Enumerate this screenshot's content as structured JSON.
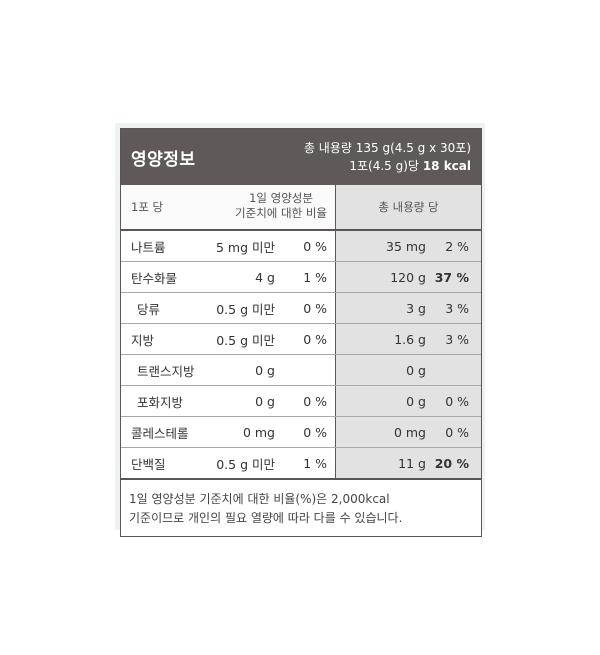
{
  "header": {
    "title": "영양정보",
    "total_line": "총 내용량 135 g(4.5 g x 30포)",
    "serving_prefix": "1포(4.5 g)당",
    "calories": "18 kcal"
  },
  "columns": {
    "per_serving": "1포 당",
    "daily_value_line1": "1일 영양성분",
    "daily_value_line2": "기준치에 대한 비율",
    "total_label": "총 내용량 당"
  },
  "rows": [
    {
      "name": "나트륨",
      "amount": "5 mg 미만",
      "dv": "0 %",
      "total_amount": "35 mg",
      "total_dv": "2 %"
    },
    {
      "name": "탄수화물",
      "amount": "4 g",
      "dv": "1 %",
      "total_amount": "120 g",
      "total_dv": "37 %"
    },
    {
      "name": "당류",
      "amount": "0.5 g 미만",
      "dv": "0 %",
      "total_amount": "3 g",
      "total_dv": "3 %"
    },
    {
      "name": "지방",
      "amount": "0.5 g 미만",
      "dv": "0 %",
      "total_amount": "1.6 g",
      "total_dv": "3 %"
    },
    {
      "name": "트랜스지방",
      "amount": "0 g",
      "dv": "",
      "total_amount": "0 g",
      "total_dv": ""
    },
    {
      "name": "포화지방",
      "amount": "0 g",
      "dv": "0 %",
      "total_amount": "0 g",
      "total_dv": "0 %"
    },
    {
      "name": "콜레스테롤",
      "amount": "0 mg",
      "dv": "0 %",
      "total_amount": "0 mg",
      "total_dv": "0 %"
    },
    {
      "name": "단백질",
      "amount": "0.5 g 미만",
      "dv": "1 %",
      "total_amount": "11 g",
      "total_dv": "20 %"
    }
  ],
  "footnote": {
    "line1": "1일 영양성분 기준치에 대한 비율(%)은 2,000kcal",
    "line2": "기준이므로 개인의 필요 열량에 따라 다를 수 있습니다."
  }
}
